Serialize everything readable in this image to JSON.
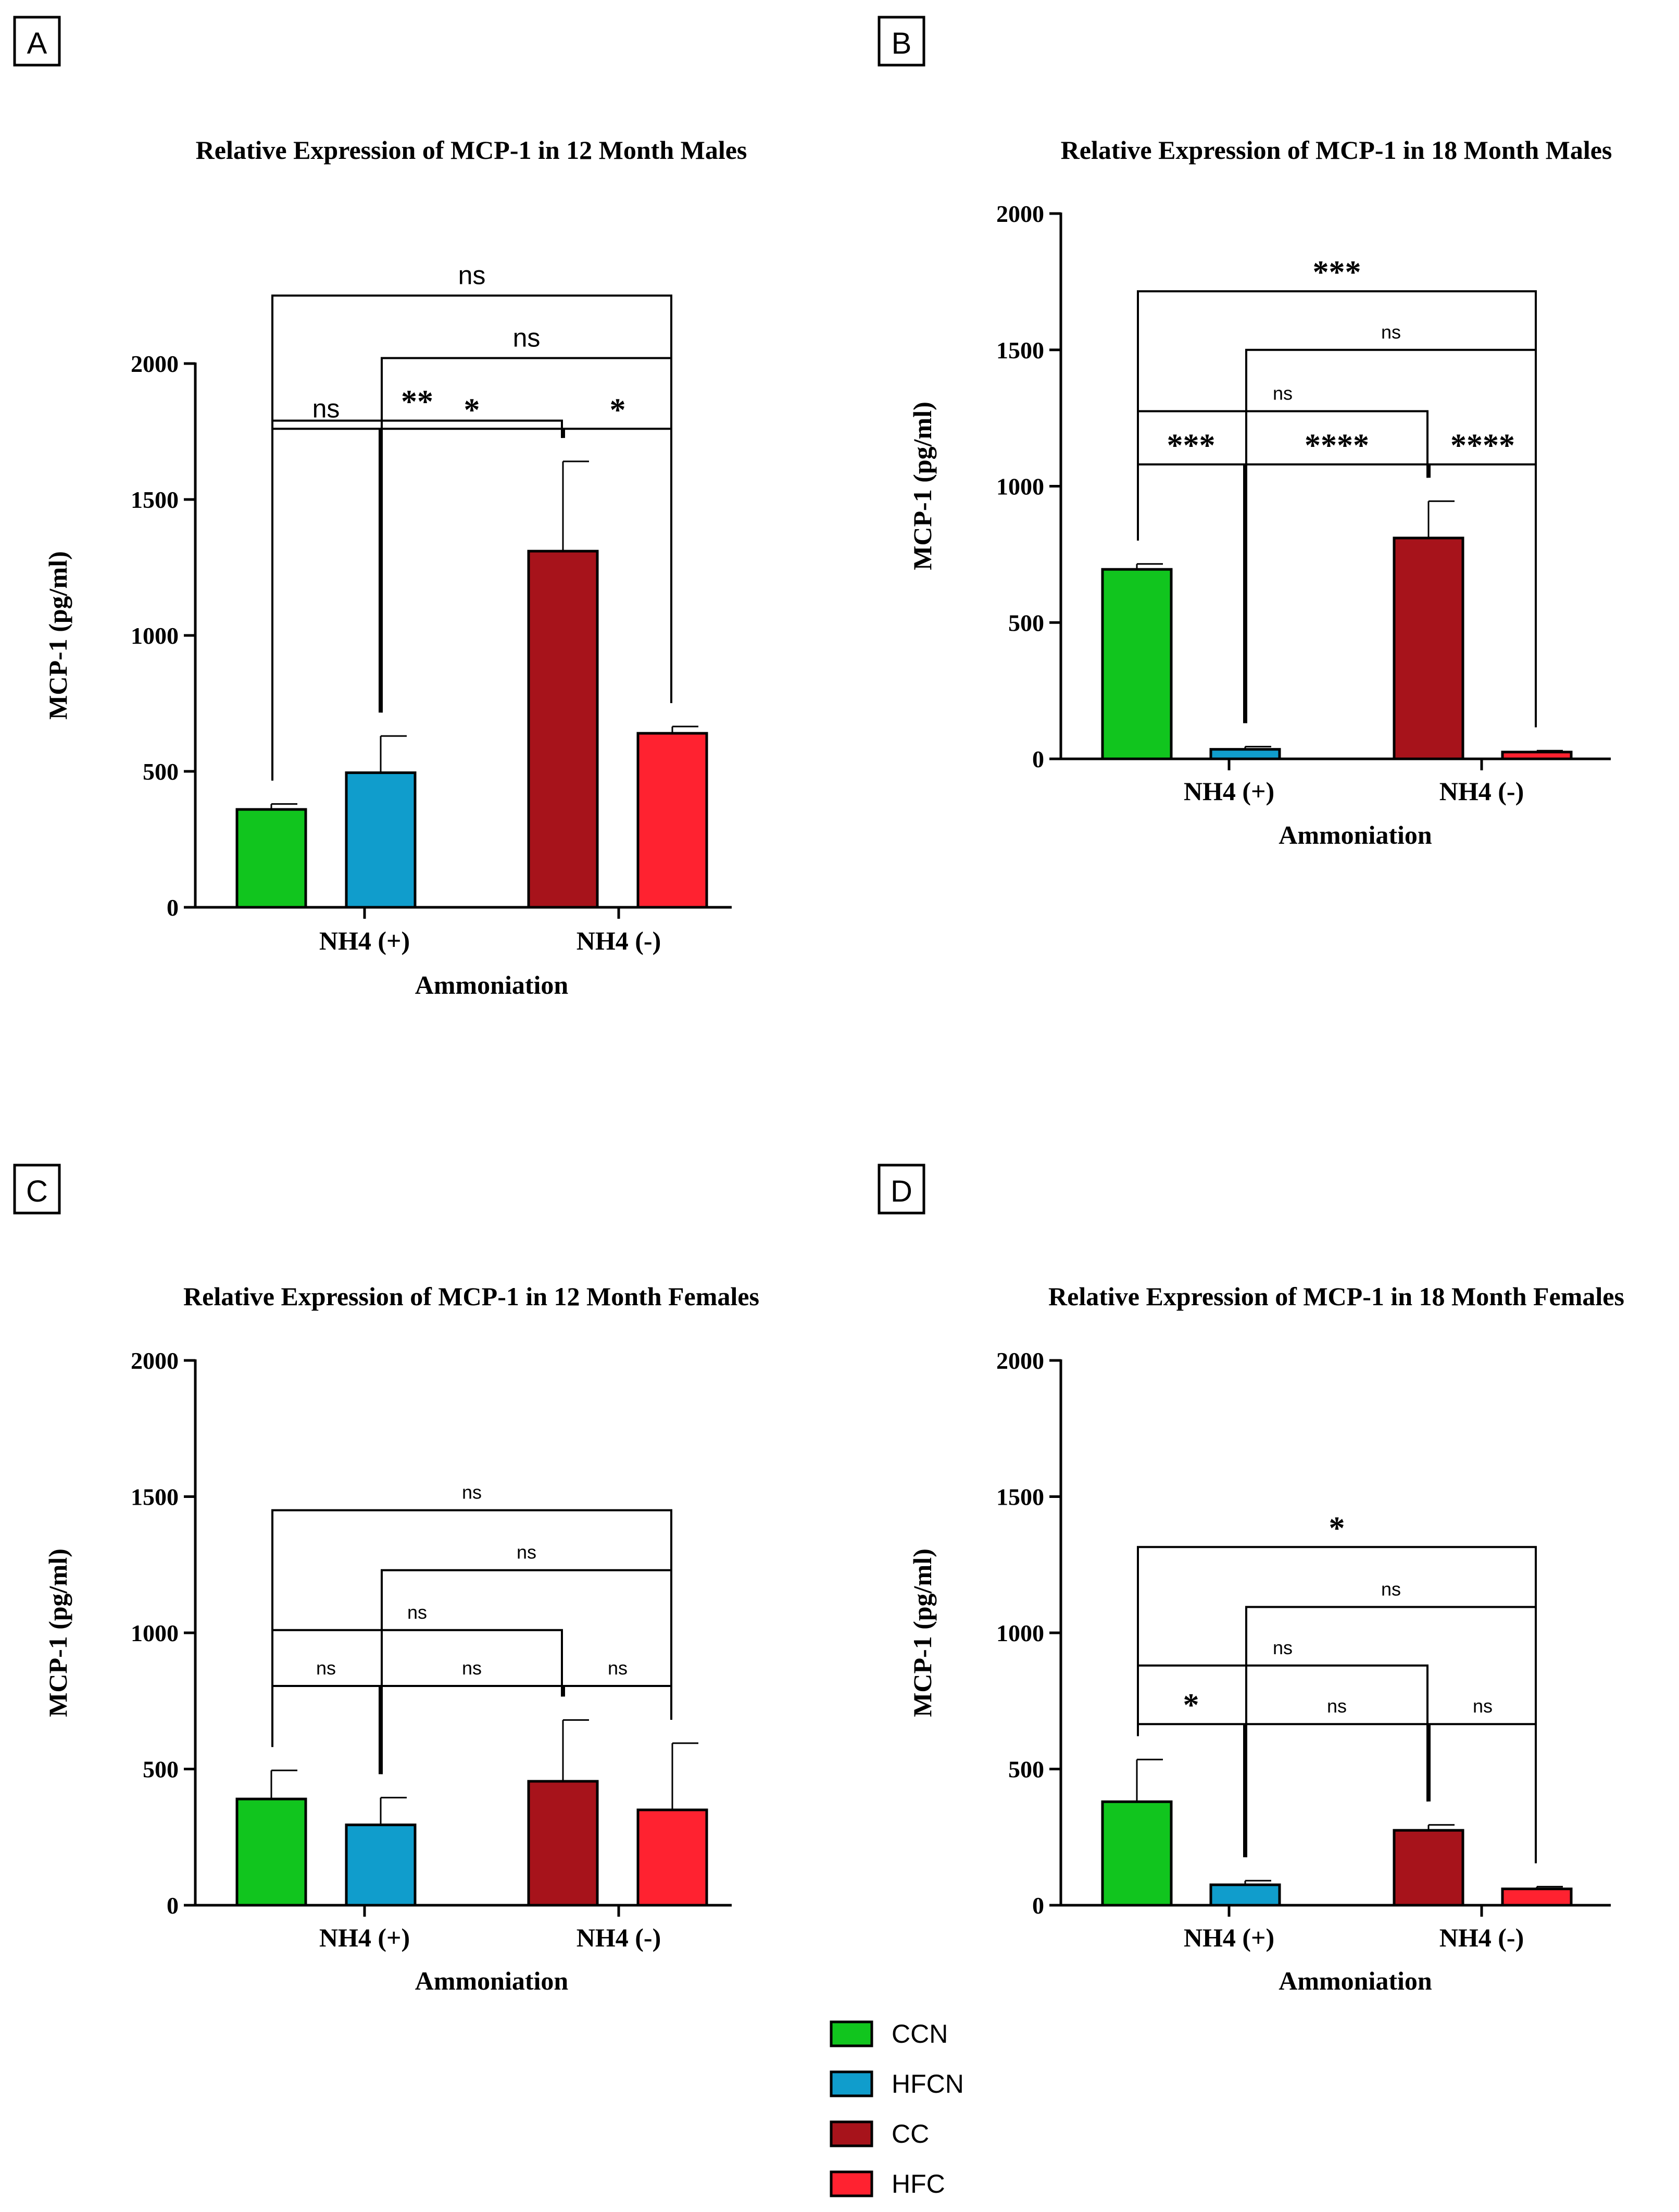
{
  "chart_data": [
    {
      "panel_label": "A",
      "type": "bar",
      "title": "Relative Expression of MCP-1 in 12 Month Males",
      "xlabel": "Ammoniation",
      "ylabel": "MCP-1 (pg/ml)",
      "ylim": [
        0,
        2000
      ],
      "yticks": [
        0,
        500,
        1000,
        1500,
        2000
      ],
      "categories": [
        "NH4 (+)",
        "NH4 (-)"
      ],
      "bars": [
        {
          "series": "CCN",
          "group": "NH4 (+)",
          "value": 360,
          "error": 20
        },
        {
          "series": "HFCN",
          "group": "NH4 (+)",
          "value": 495,
          "error": 135
        },
        {
          "series": "CC",
          "group": "NH4 (-)",
          "value": 1310,
          "error": 330
        },
        {
          "series": "HFC",
          "group": "NH4 (-)",
          "value": 640,
          "error": 25
        }
      ],
      "comparisons": [
        {
          "from": 0,
          "to": 3,
          "label": "ns",
          "y": 2250
        },
        {
          "from": 1,
          "to": 3,
          "label": "ns",
          "y": 2020
        },
        {
          "from": 0,
          "to": 2,
          "label": "**",
          "y": 1790
        },
        {
          "from": 0,
          "to": 1,
          "label": "ns",
          "y": 1760
        },
        {
          "from": 1,
          "to": 2,
          "label": "*",
          "y": 1760
        },
        {
          "from": 2,
          "to": 3,
          "label": "*",
          "y": 1760
        }
      ]
    },
    {
      "panel_label": "B",
      "type": "bar",
      "title": "Relative Expression of MCP-1 in 18 Month Males",
      "xlabel": "Ammoniation",
      "ylabel": "MCP-1 (pg/ml)",
      "ylim": [
        0,
        2000
      ],
      "yticks": [
        0,
        500,
        1000,
        1500,
        2000
      ],
      "categories": [
        "NH4 (+)",
        "NH4 (-)"
      ],
      "bars": [
        {
          "series": "CCN",
          "group": "NH4 (+)",
          "value": 695,
          "error": 20
        },
        {
          "series": "HFCN",
          "group": "NH4 (+)",
          "value": 35,
          "error": 10
        },
        {
          "series": "CC",
          "group": "NH4 (-)",
          "value": 810,
          "error": 135
        },
        {
          "series": "HFC",
          "group": "NH4 (-)",
          "value": 25,
          "error": 5
        }
      ],
      "comparisons": [
        {
          "from": 0,
          "to": 3,
          "label": "***",
          "y": 1715
        },
        {
          "from": 1,
          "to": 3,
          "label": "ns",
          "y": 1500
        },
        {
          "from": 0,
          "to": 2,
          "label": "ns",
          "y": 1275
        },
        {
          "from": 0,
          "to": 1,
          "label": "***",
          "y": 1080
        },
        {
          "from": 1,
          "to": 2,
          "label": "****",
          "y": 1080
        },
        {
          "from": 2,
          "to": 3,
          "label": "****",
          "y": 1080
        }
      ]
    },
    {
      "panel_label": "C",
      "type": "bar",
      "title": "Relative Expression of MCP-1 in 12 Month Females",
      "xlabel": "Ammoniation",
      "ylabel": "MCP-1 (pg/ml)",
      "ylim": [
        0,
        2000
      ],
      "yticks": [
        0,
        500,
        1000,
        1500,
        2000
      ],
      "categories": [
        "NH4 (+)",
        "NH4 (-)"
      ],
      "bars": [
        {
          "series": "CCN",
          "group": "NH4 (+)",
          "value": 390,
          "error": 105
        },
        {
          "series": "HFCN",
          "group": "NH4 (+)",
          "value": 295,
          "error": 100
        },
        {
          "series": "CC",
          "group": "NH4 (-)",
          "value": 455,
          "error": 225
        },
        {
          "series": "HFC",
          "group": "NH4 (-)",
          "value": 350,
          "error": 245
        }
      ],
      "comparisons": [
        {
          "from": 0,
          "to": 3,
          "label": "ns",
          "y": 1450
        },
        {
          "from": 1,
          "to": 3,
          "label": "ns",
          "y": 1230
        },
        {
          "from": 0,
          "to": 2,
          "label": "ns",
          "y": 1010
        },
        {
          "from": 0,
          "to": 1,
          "label": "ns",
          "y": 805
        },
        {
          "from": 1,
          "to": 2,
          "label": "ns",
          "y": 805
        },
        {
          "from": 2,
          "to": 3,
          "label": "ns",
          "y": 805
        }
      ]
    },
    {
      "panel_label": "D",
      "type": "bar",
      "title": "Relative Expression of MCP-1 in 18 Month Females",
      "xlabel": "Ammoniation",
      "ylabel": "MCP-1 (pg/ml)",
      "ylim": [
        0,
        2000
      ],
      "yticks": [
        0,
        500,
        1000,
        1500,
        2000
      ],
      "categories": [
        "NH4 (+)",
        "NH4 (-)"
      ],
      "bars": [
        {
          "series": "CCN",
          "group": "NH4 (+)",
          "value": 380,
          "error": 155
        },
        {
          "series": "HFCN",
          "group": "NH4 (+)",
          "value": 75,
          "error": 15
        },
        {
          "series": "CC",
          "group": "NH4 (-)",
          "value": 275,
          "error": 20
        },
        {
          "series": "HFC",
          "group": "NH4 (-)",
          "value": 60,
          "error": 8
        }
      ],
      "comparisons": [
        {
          "from": 0,
          "to": 3,
          "label": "*",
          "y": 1315
        },
        {
          "from": 1,
          "to": 3,
          "label": "ns",
          "y": 1095
        },
        {
          "from": 0,
          "to": 2,
          "label": "ns",
          "y": 880
        },
        {
          "from": 0,
          "to": 1,
          "label": "*",
          "y": 665
        },
        {
          "from": 1,
          "to": 2,
          "label": "ns",
          "y": 665
        },
        {
          "from": 2,
          "to": 3,
          "label": "ns",
          "y": 665
        }
      ]
    }
  ],
  "legend": [
    {
      "name": "CCN",
      "color": "#11c51e"
    },
    {
      "name": "HFCN",
      "color": "#109dcc"
    },
    {
      "name": "CC",
      "color": "#a7131b"
    },
    {
      "name": "HFC",
      "color": "#ff2230"
    }
  ]
}
